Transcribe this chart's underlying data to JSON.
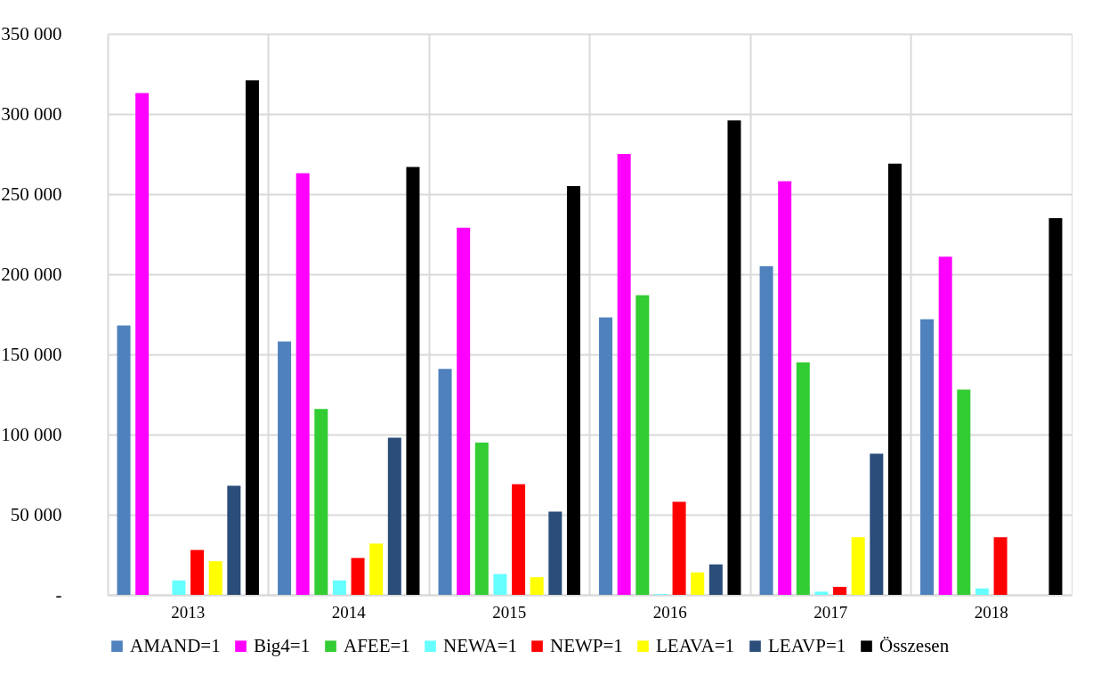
{
  "chart_data": {
    "type": "bar",
    "categories": [
      "2013",
      "2014",
      "2015",
      "2016",
      "2017",
      "2018"
    ],
    "series": [
      {
        "name": "AMAND=1",
        "color": "#4f81bd",
        "values": [
          168000,
          158000,
          141000,
          173000,
          205000,
          172000
        ]
      },
      {
        "name": "Big4=1",
        "color": "#ff00ff",
        "values": [
          313000,
          263000,
          229000,
          275000,
          258000,
          211000
        ]
      },
      {
        "name": "AFEE=1",
        "color": "#33cc33",
        "values": [
          null,
          116000,
          95000,
          187000,
          145000,
          128000
        ]
      },
      {
        "name": "NEWA=1",
        "color": "#66ffff",
        "values": [
          9000,
          9000,
          13000,
          500,
          2000,
          4000
        ]
      },
      {
        "name": "NEWP=1",
        "color": "#ff0000",
        "values": [
          28000,
          23000,
          69000,
          58000,
          5000,
          36000
        ]
      },
      {
        "name": "LEAVA=1",
        "color": "#ffff00",
        "values": [
          21000,
          32000,
          11000,
          14000,
          36000,
          null
        ]
      },
      {
        "name": "LEAVP=1",
        "color": "#2a4d7a",
        "values": [
          68000,
          98000,
          52000,
          19000,
          88000,
          null
        ]
      },
      {
        "name": "Összesen",
        "color": "#000000",
        "values": [
          321000,
          267000,
          255000,
          296000,
          269000,
          235000
        ]
      }
    ],
    "ylim": [
      0,
      350000
    ],
    "yticks": [
      {
        "value": 0,
        "label": "-"
      },
      {
        "value": 50000,
        "label": "50 000"
      },
      {
        "value": 100000,
        "label": "100 000"
      },
      {
        "value": 150000,
        "label": "150 000"
      },
      {
        "value": 200000,
        "label": "200 000"
      },
      {
        "value": 250000,
        "label": "250 000"
      },
      {
        "value": 300000,
        "label": "300 000"
      },
      {
        "value": 350000,
        "label": "350 000"
      }
    ],
    "grid": true,
    "legend": "bottom"
  }
}
